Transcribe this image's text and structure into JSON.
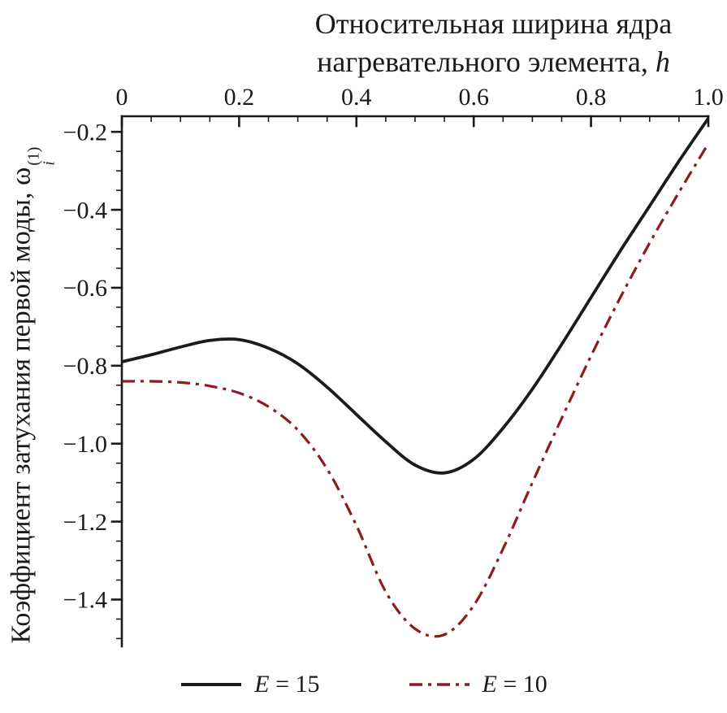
{
  "title": {
    "line1": "Относительная ширина ядра",
    "line2_prefix": "нагревательного элемента, ",
    "h_symbol": "h"
  },
  "ylabel": {
    "prefix": "Коэффициент затухания первой моды, ",
    "symbol": "ω",
    "sub": "i",
    "sup": "(1)"
  },
  "legend": {
    "items": [
      {
        "var": "E",
        "rest": " = 15",
        "style": "solid",
        "color": "#1b1b1b"
      },
      {
        "var": "E",
        "rest": " = 10",
        "style": "dashdot",
        "color": "#8e1b1e"
      }
    ]
  },
  "chart_data": {
    "type": "line",
    "title": "Относительная ширина ядра нагревательного элемента, h",
    "ylabel": "Коэффициент затухания первой моды, ω_i^(1)",
    "xlabel_position": "top",
    "grid": false,
    "legend_position": "bottom",
    "xlim": [
      0,
      1.0
    ],
    "ylim": [
      -1.52,
      -0.16
    ],
    "xticks": [
      0,
      0.2,
      0.4,
      0.6,
      0.8,
      1.0
    ],
    "xtick_labels": [
      "0",
      "0.2",
      "0.4",
      "0.6",
      "0.8",
      "1.0"
    ],
    "yticks": [
      -0.2,
      -0.4,
      -0.6,
      -0.8,
      -1.0,
      -1.2,
      -1.4
    ],
    "ytick_labels": [
      "−0.2",
      "−0.4",
      "−0.6",
      "−0.8",
      "−1.0",
      "−1.2",
      "−1.4"
    ],
    "x_minor_step": 0.05,
    "y_minor_step": 0.05,
    "series": [
      {
        "name": "E = 15",
        "color": "#1b1b1b",
        "line_style": "solid",
        "x": [
          0,
          0.05,
          0.1,
          0.15,
          0.2,
          0.25,
          0.3,
          0.35,
          0.4,
          0.45,
          0.5,
          0.55,
          0.6,
          0.65,
          0.7,
          0.75,
          0.8,
          0.85,
          0.9,
          0.95,
          1.0
        ],
        "y": [
          -0.79,
          -0.772,
          -0.752,
          -0.735,
          -0.733,
          -0.755,
          -0.795,
          -0.855,
          -0.925,
          -0.995,
          -1.055,
          -1.075,
          -1.04,
          -0.96,
          -0.86,
          -0.745,
          -0.625,
          -0.505,
          -0.39,
          -0.275,
          -0.165
        ]
      },
      {
        "name": "E = 10",
        "color": "#8e1b1e",
        "line_style": "dashdot",
        "x": [
          0,
          0.05,
          0.1,
          0.15,
          0.2,
          0.25,
          0.3,
          0.35,
          0.4,
          0.45,
          0.5,
          0.55,
          0.6,
          0.65,
          0.7,
          0.75,
          0.8,
          0.85,
          0.9,
          0.95,
          1.0
        ],
        "y": [
          -0.84,
          -0.84,
          -0.843,
          -0.852,
          -0.87,
          -0.905,
          -0.965,
          -1.065,
          -1.21,
          -1.38,
          -1.475,
          -1.49,
          -1.415,
          -1.27,
          -1.1,
          -0.935,
          -0.775,
          -0.625,
          -0.485,
          -0.355,
          -0.23
        ]
      }
    ]
  }
}
